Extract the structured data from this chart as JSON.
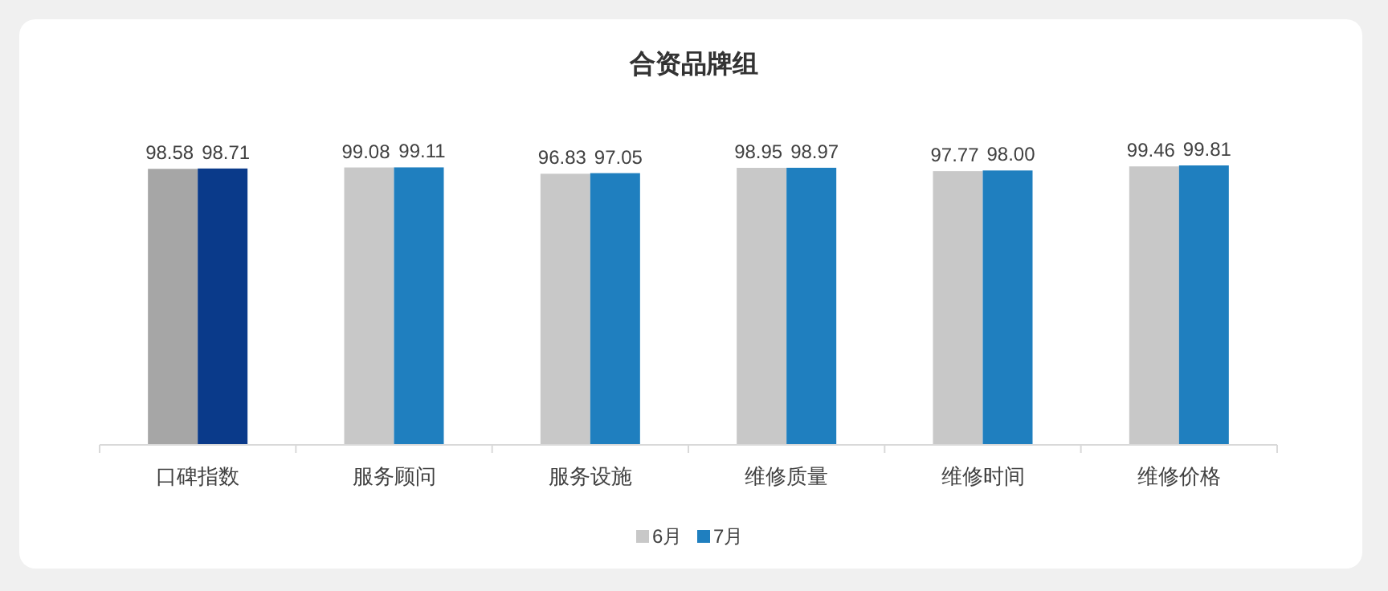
{
  "chart_data": {
    "type": "bar",
    "title": "合资品牌组",
    "categories": [
      "口碑指数",
      "服务顾问",
      "服务设施",
      "维修质量",
      "维修时间",
      "维修价格"
    ],
    "series": [
      {
        "name": "6月",
        "color": "#c8c8c8",
        "colors": [
          "#a6a6a6",
          "#c8c8c8",
          "#c8c8c8",
          "#c8c8c8",
          "#c8c8c8",
          "#c8c8c8"
        ],
        "values": [
          98.58,
          99.08,
          96.83,
          98.95,
          97.77,
          99.46
        ],
        "value_labels": [
          "98.58",
          "99.08",
          "96.83",
          "98.95",
          "97.77",
          "99.46"
        ]
      },
      {
        "name": "7月",
        "color": "#1f7fbf",
        "colors": [
          "#0a3a8a",
          "#1f7fbf",
          "#1f7fbf",
          "#1f7fbf",
          "#1f7fbf",
          "#1f7fbf"
        ],
        "values": [
          98.71,
          99.11,
          97.05,
          98.97,
          98.0,
          99.81
        ],
        "value_labels": [
          "98.71",
          "99.11",
          "97.05",
          "98.97",
          "98.00",
          "99.81"
        ]
      }
    ],
    "legend": "bottom",
    "grid": false
  }
}
